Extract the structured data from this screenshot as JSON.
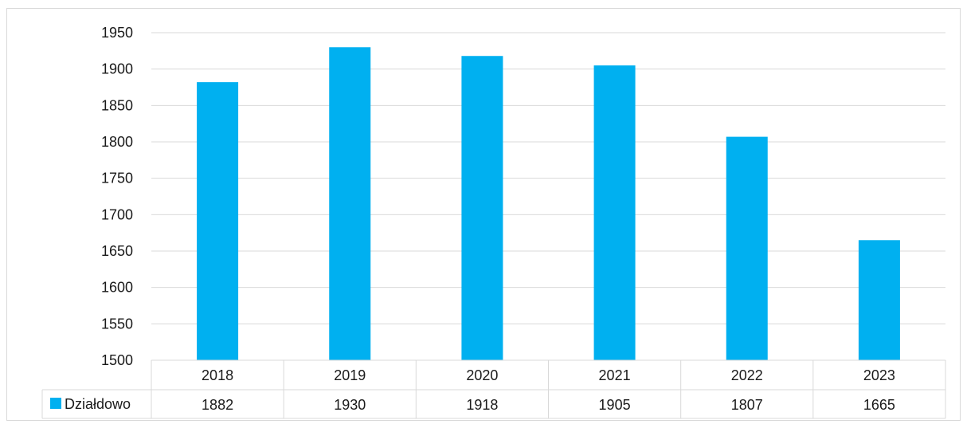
{
  "chart_data": {
    "type": "bar",
    "categories": [
      "2018",
      "2019",
      "2020",
      "2021",
      "2022",
      "2023"
    ],
    "series": [
      {
        "name": "Działdowo",
        "values": [
          1882,
          1930,
          1918,
          1905,
          1807,
          1665
        ],
        "color": "#00b0f0"
      }
    ],
    "ylim": [
      1500,
      1950
    ],
    "yticks": [
      1500,
      1550,
      1600,
      1650,
      1700,
      1750,
      1800,
      1850,
      1900,
      1950
    ],
    "grid": true,
    "legend_placement": "data-table-left",
    "data_table": true,
    "title": "",
    "xlabel": "",
    "ylabel": ""
  },
  "colors": {
    "bar": "#00b0f0",
    "grid": "#d9d9d9",
    "text": "#1a1a1a"
  }
}
